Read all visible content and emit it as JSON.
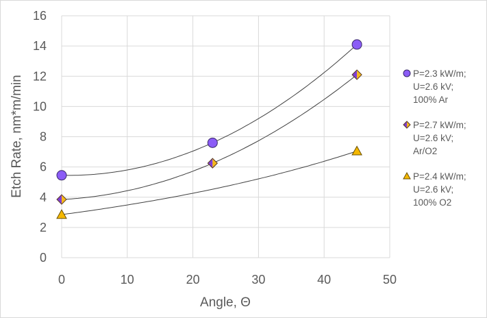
{
  "chart_data": {
    "type": "scatter",
    "title": "",
    "xlabel": "Angle, Θ",
    "ylabel": "Etch Rate, nm*m/min",
    "xlim": [
      0,
      50
    ],
    "ylim": [
      0,
      16
    ],
    "xticks": [
      0,
      10,
      20,
      30,
      40,
      50
    ],
    "yticks": [
      0,
      2,
      4,
      6,
      8,
      10,
      12,
      14,
      16
    ],
    "grid": true,
    "legend_position": "right",
    "series": [
      {
        "name": "P=2.3 kW/m; U=2.6 kV; 100% Ar",
        "legend_lines": [
          "P=2.3 kW/m;",
          "U=2.6 kV;",
          "100% Ar"
        ],
        "marker": "circle",
        "color": "#8b5cf6",
        "trendline": "polynomial",
        "x": [
          0,
          23,
          45
        ],
        "y": [
          5.45,
          7.6,
          14.1
        ]
      },
      {
        "name": "P=2.7 kW/m; U=2.6 kV; Ar/O2",
        "legend_lines": [
          "P=2.7 kW/m;",
          "U=2.6 kV;",
          "Ar/O2"
        ],
        "marker": "diamond",
        "color": "#7e3fd6",
        "color2": "#f5b81c",
        "trendline": "polynomial",
        "x": [
          0,
          23,
          45
        ],
        "y": [
          3.85,
          6.25,
          12.1
        ]
      },
      {
        "name": "P=2.4 kW/m; U=2.6 kV; 100% O2",
        "legend_lines": [
          "P=2.4 kW/m;",
          "U=2.6 kV;",
          "100% O2"
        ],
        "marker": "triangle",
        "color": "#f5b800",
        "trendline": "exponential",
        "x": [
          0,
          45
        ],
        "y": [
          2.85,
          7.05
        ]
      }
    ]
  }
}
